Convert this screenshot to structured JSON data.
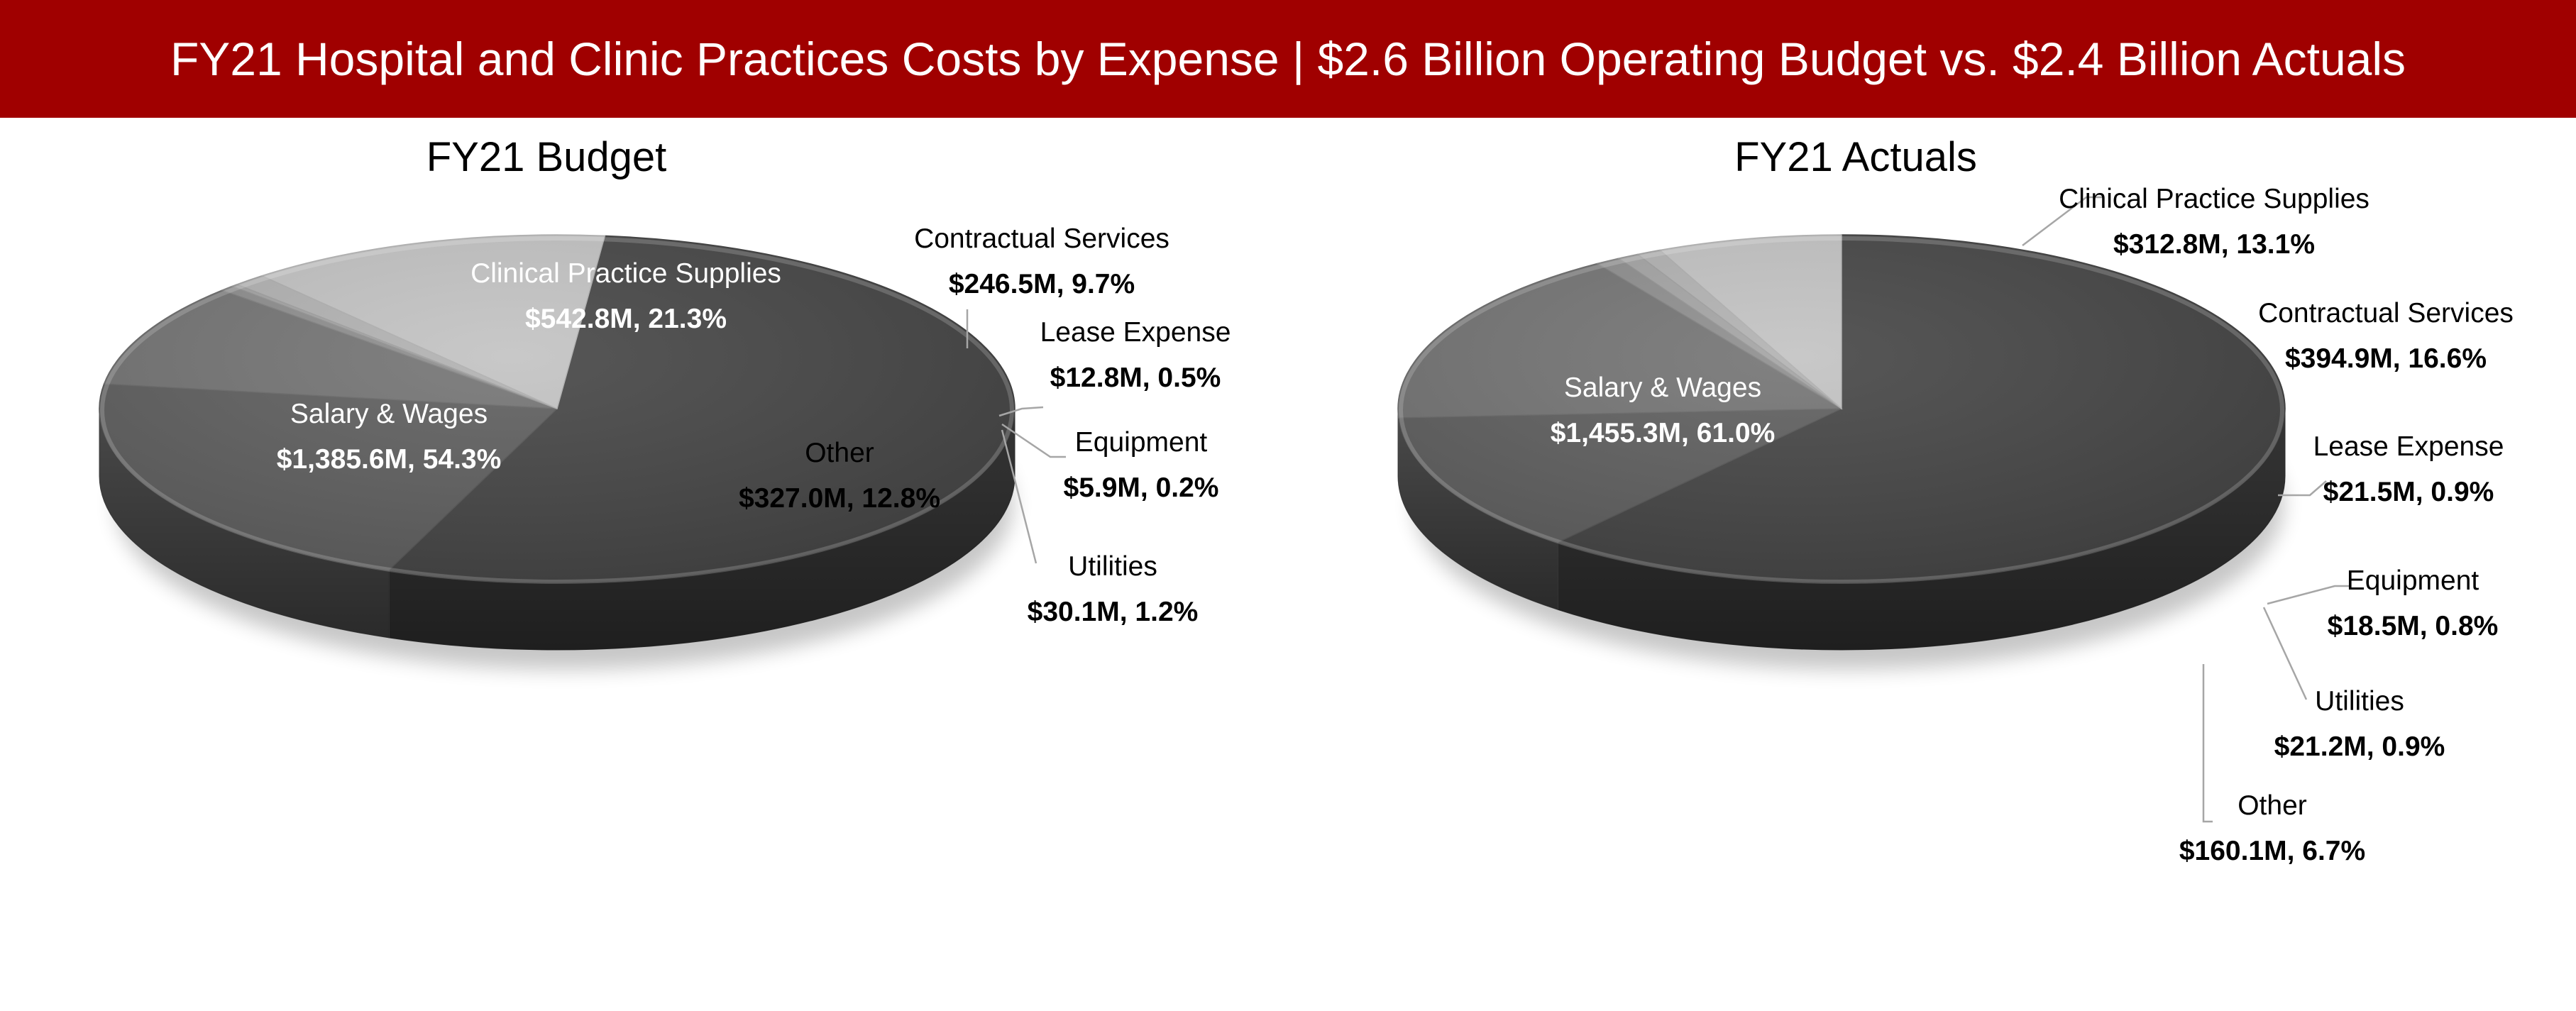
{
  "header": {
    "title": "FY21 Hospital and Clinic Practices Costs by Expense | $2.6 Billion Operating Budget vs. $2.4 Billion Actuals"
  },
  "colors": {
    "header_bg": "#a00000",
    "header_text": "#ffffff",
    "salary": "#444444",
    "clinical": "#5e5e5e",
    "contractual": "#737373",
    "lease": "#8d8d8d",
    "equipment": "#a3a3a3",
    "utilities": "#b1b1b1",
    "other": "#c2c2c2",
    "leader": "#a6a6a6"
  },
  "chart_data": [
    {
      "type": "pie",
      "title": "FY21 Budget",
      "slices": [
        {
          "label": "Salary & Wages",
          "value_label": "$1,385.6M, 54.3%",
          "value": 1385.6,
          "percent": 54.3,
          "color": "#444444",
          "label_color": "#ffffff",
          "inside": true
        },
        {
          "label": "Clinical Practice Supplies",
          "value_label": "$542.8M, 21.3%",
          "value": 542.8,
          "percent": 21.3,
          "color": "#5e5e5e",
          "label_color": "#ffffff",
          "inside": true
        },
        {
          "label": "Contractual Services",
          "value_label": "$246.5M, 9.7%",
          "value": 246.5,
          "percent": 9.7,
          "color": "#737373",
          "label_color": "#000000",
          "inside": false
        },
        {
          "label": "Lease Expense",
          "value_label": "$12.8M, 0.5%",
          "value": 12.8,
          "percent": 0.5,
          "color": "#8d8d8d",
          "label_color": "#000000",
          "inside": false
        },
        {
          "label": "Equipment",
          "value_label": "$5.9M, 0.2%",
          "value": 5.9,
          "percent": 0.2,
          "color": "#a3a3a3",
          "label_color": "#000000",
          "inside": false
        },
        {
          "label": "Utilities",
          "value_label": "$30.1M, 1.2%",
          "value": 30.1,
          "percent": 1.2,
          "color": "#b1b1b1",
          "label_color": "#000000",
          "inside": false
        },
        {
          "label": "Other",
          "value_label": "$327.0M, 12.8%",
          "value": 327.0,
          "percent": 12.8,
          "color": "#c2c2c2",
          "label_color": "#000000",
          "inside": true
        }
      ]
    },
    {
      "type": "pie",
      "title": "FY21 Actuals",
      "slices": [
        {
          "label": "Salary & Wages",
          "value_label": "$1,455.3M, 61.0%",
          "value": 1455.3,
          "percent": 61.0,
          "color": "#444444",
          "label_color": "#ffffff",
          "inside": true
        },
        {
          "label": "Clinical Practice Supplies",
          "value_label": "$312.8M, 13.1%",
          "value": 312.8,
          "percent": 13.1,
          "color": "#5e5e5e",
          "label_color": "#000000",
          "inside": false
        },
        {
          "label": "Contractual Services",
          "value_label": "$394.9M, 16.6%",
          "value": 394.9,
          "percent": 16.6,
          "color": "#737373",
          "label_color": "#000000",
          "inside": false
        },
        {
          "label": "Lease Expense",
          "value_label": "$21.5M, 0.9%",
          "value": 21.5,
          "percent": 0.9,
          "color": "#8d8d8d",
          "label_color": "#000000",
          "inside": false
        },
        {
          "label": "Equipment",
          "value_label": "$18.5M, 0.8%",
          "value": 18.5,
          "percent": 0.8,
          "color": "#a3a3a3",
          "label_color": "#000000",
          "inside": false
        },
        {
          "label": "Utilities",
          "value_label": "$21.2M, 0.9%",
          "value": 21.2,
          "percent": 0.9,
          "color": "#b1b1b1",
          "label_color": "#000000",
          "inside": false
        },
        {
          "label": "Other",
          "value_label": "$160.1M, 6.7%",
          "value": 160.1,
          "percent": 6.7,
          "color": "#c2c2c2",
          "label_color": "#000000",
          "inside": false
        }
      ]
    }
  ]
}
